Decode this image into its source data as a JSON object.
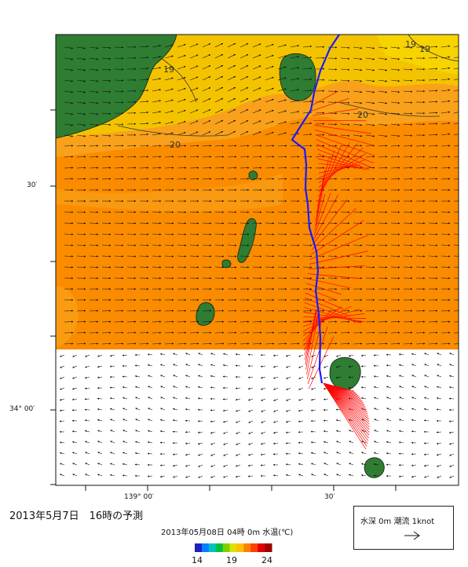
{
  "forecast_title": "2013年5月7日　16時の予測",
  "colorbar": {
    "title": "2013年05月08日 04時 0m 水温(℃)",
    "ticks": [
      "14",
      "19",
      "24"
    ],
    "colors": [
      "#2020c0",
      "#0080ff",
      "#00c0c0",
      "#00c040",
      "#80d000",
      "#e0e000",
      "#ffc000",
      "#ff8000",
      "#ff4000",
      "#e00000",
      "#a00000"
    ]
  },
  "legend": {
    "label": "水深 0m 潮流 1knot",
    "arrow_icon": "arrow-right-icon"
  },
  "axes": {
    "lat_labels": [
      "30′",
      "34° 00′"
    ],
    "lon_labels": [
      "139° 00′",
      "30′"
    ]
  },
  "contour_labels": [
    "19",
    "19",
    "20",
    "20",
    "19"
  ],
  "colors": {
    "sea_orange": "#fb8c00",
    "sea_light_orange": "#f9a11a",
    "sea_yellow": "#f4c300",
    "land": "#2e7d32",
    "track": "#1a1aff",
    "current_fan": "#ff0000"
  }
}
